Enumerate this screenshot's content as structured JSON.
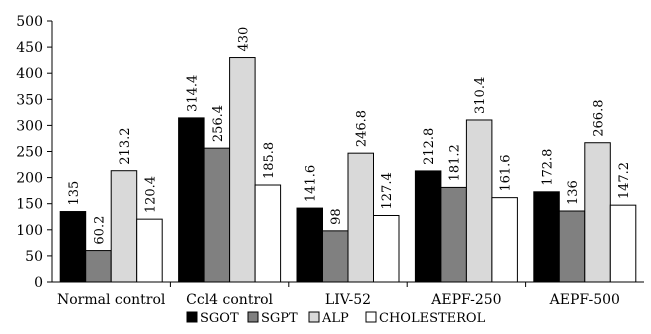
{
  "chart_data": {
    "type": "bar",
    "title": "",
    "xlabel": "",
    "ylabel": "",
    "categories": [
      "Normal control",
      "Ccl4 control",
      "LIV-52",
      "AEPF-250",
      "AEPF-500"
    ],
    "series": [
      {
        "name": "SGOT",
        "values": [
          135,
          314.4,
          141.6,
          212.8,
          172.8
        ],
        "color": "#000000"
      },
      {
        "name": "SGPT",
        "values": [
          60.2,
          256.4,
          98,
          181.2,
          136
        ],
        "color": "#808080"
      },
      {
        "name": "ALP",
        "values": [
          213.2,
          430,
          246.8,
          310.4,
          266.8
        ],
        "color": "#d9d9d9"
      },
      {
        "name": "CHOLESTEROL",
        "values": [
          120.4,
          185.8,
          127.4,
          161.6,
          147.2
        ],
        "color": "#ffffff"
      }
    ],
    "data_labels": [
      [
        "135",
        "60.2",
        "213.2",
        "120.4"
      ],
      [
        "314.4",
        "256.4",
        "430",
        "185.8"
      ],
      [
        "141.6",
        "98",
        "246.8",
        "127.4"
      ],
      [
        "212.8",
        "181.2",
        "310.4",
        "161.6"
      ],
      [
        "172.8",
        "136",
        "266.8",
        "147.2"
      ]
    ],
    "ylim": [
      0,
      500
    ],
    "yticks": [
      "0",
      "50",
      "100",
      "150",
      "200",
      "250",
      "300",
      "350",
      "400",
      "450",
      "500"
    ],
    "grid": false,
    "legend": {
      "placement": "bottom",
      "entries": [
        "SGOT",
        "SGPT",
        "ALP",
        "CHOLESTEROL"
      ]
    },
    "bar_outline_color": "#000000",
    "axis_color": "#000000"
  }
}
